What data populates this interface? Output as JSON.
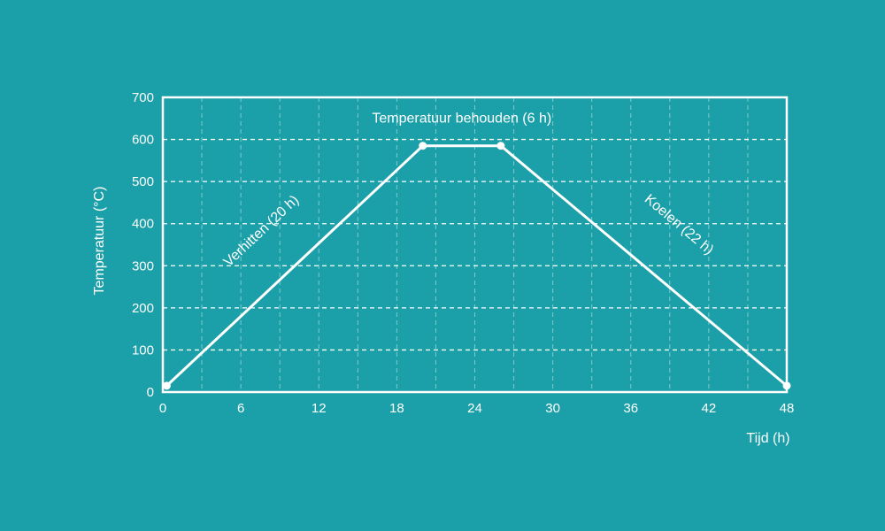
{
  "background_color": "#1b9fa8",
  "line_color": "#ffffff",
  "chart_data": {
    "type": "line",
    "title": "",
    "xlabel": "Tijd (h)",
    "ylabel": "Temperatuur (°C)",
    "xlim": [
      0,
      48
    ],
    "ylim": [
      0,
      700
    ],
    "xticks": [
      0,
      6,
      12,
      18,
      24,
      30,
      36,
      42,
      48
    ],
    "yticks": [
      0,
      100,
      200,
      300,
      400,
      500,
      600,
      700
    ],
    "grid": true,
    "series": [
      {
        "x": [
          0.3,
          20,
          26,
          48
        ],
        "y": [
          15,
          585,
          585,
          15
        ]
      }
    ],
    "annotations": [
      {
        "text": "Verhitten (20 h)",
        "x": 7.8,
        "y": 375
      },
      {
        "text": "Temperatuur behouden (6 h)",
        "x": 23,
        "y": 640
      },
      {
        "text": "Koelen (22 h)",
        "x": 39.5,
        "y": 390
      }
    ]
  }
}
